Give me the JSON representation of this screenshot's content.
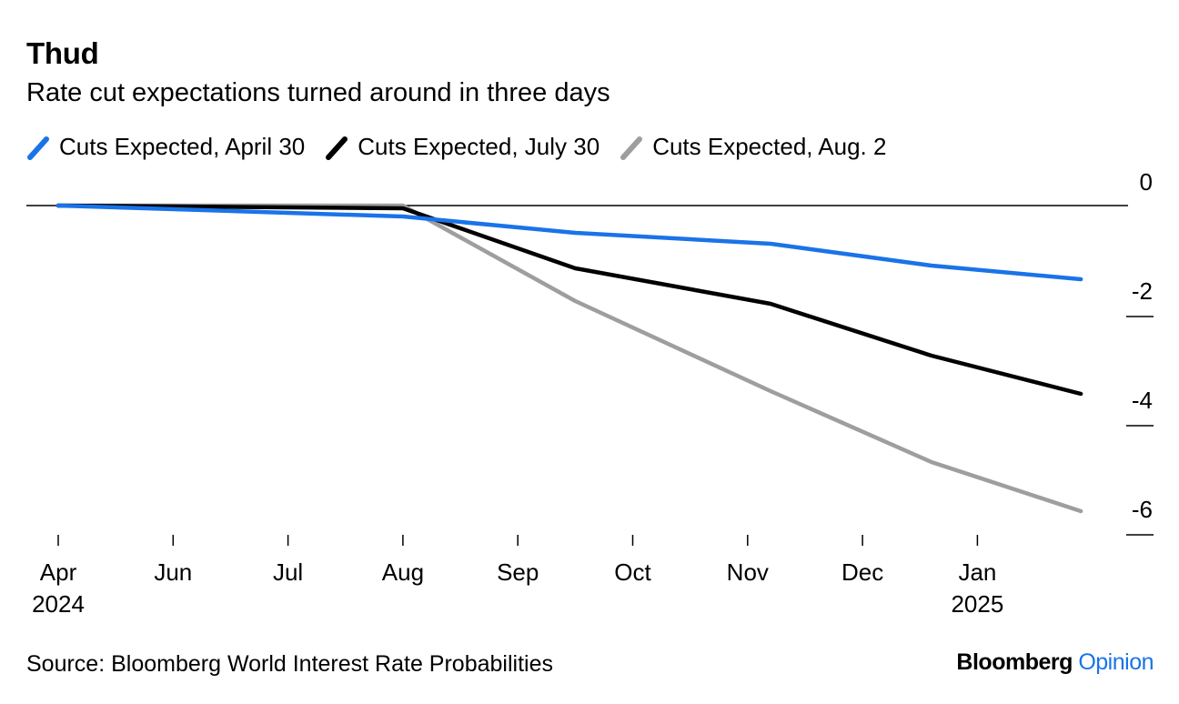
{
  "colors": {
    "april": "#1a73e8",
    "july": "#000000",
    "aug": "#9e9e9e"
  },
  "footer": {
    "source": "Source: Bloomberg World Interest Rate Probabilities",
    "brand_main": "Bloomberg",
    "brand_sub": "Opinion"
  },
  "chart_data": {
    "type": "line",
    "title": "Thud",
    "subtitle": "Rate cut expectations turned around in three days",
    "xlabel": "",
    "ylabel": "",
    "ylim": [
      -6.2,
      0
    ],
    "yticks": [
      0,
      -2,
      -4,
      -6
    ],
    "ytick_labels": [
      "0",
      "-2",
      "-4",
      "-6"
    ],
    "x_tick_labels": [
      {
        "label": "Apr",
        "sublabel": "2024",
        "x": 0
      },
      {
        "label": "Jun",
        "sublabel": "",
        "x": 1
      },
      {
        "label": "Jul",
        "sublabel": "",
        "x": 2
      },
      {
        "label": "Aug",
        "sublabel": "",
        "x": 3
      },
      {
        "label": "Sep",
        "sublabel": "",
        "x": 4
      },
      {
        "label": "Oct",
        "sublabel": "",
        "x": 5
      },
      {
        "label": "Nov",
        "sublabel": "",
        "x": 6
      },
      {
        "label": "Dec",
        "sublabel": "",
        "x": 7
      },
      {
        "label": "Jan",
        "sublabel": "2025",
        "x": 8
      }
    ],
    "legend_position": "top-left",
    "series": [
      {
        "name": "Cuts Expected, April 30",
        "color_key": "april",
        "x": [
          0,
          3,
          4.5,
          6.2,
          7.6,
          8.9
        ],
        "values": [
          0,
          -0.2,
          -0.5,
          -0.7,
          -1.1,
          -1.35
        ]
      },
      {
        "name": "Cuts Expected, July 30",
        "color_key": "july",
        "x": [
          0,
          3,
          4.5,
          6.2,
          7.6,
          8.9
        ],
        "values": [
          0,
          -0.05,
          -1.15,
          -1.8,
          -2.75,
          -3.45
        ]
      },
      {
        "name": "Cuts Expected, Aug. 2",
        "color_key": "aug",
        "x": [
          0,
          3,
          4.5,
          6.2,
          7.6,
          8.9
        ],
        "values": [
          0,
          0,
          -1.75,
          -3.4,
          -4.7,
          -5.6
        ]
      }
    ]
  }
}
